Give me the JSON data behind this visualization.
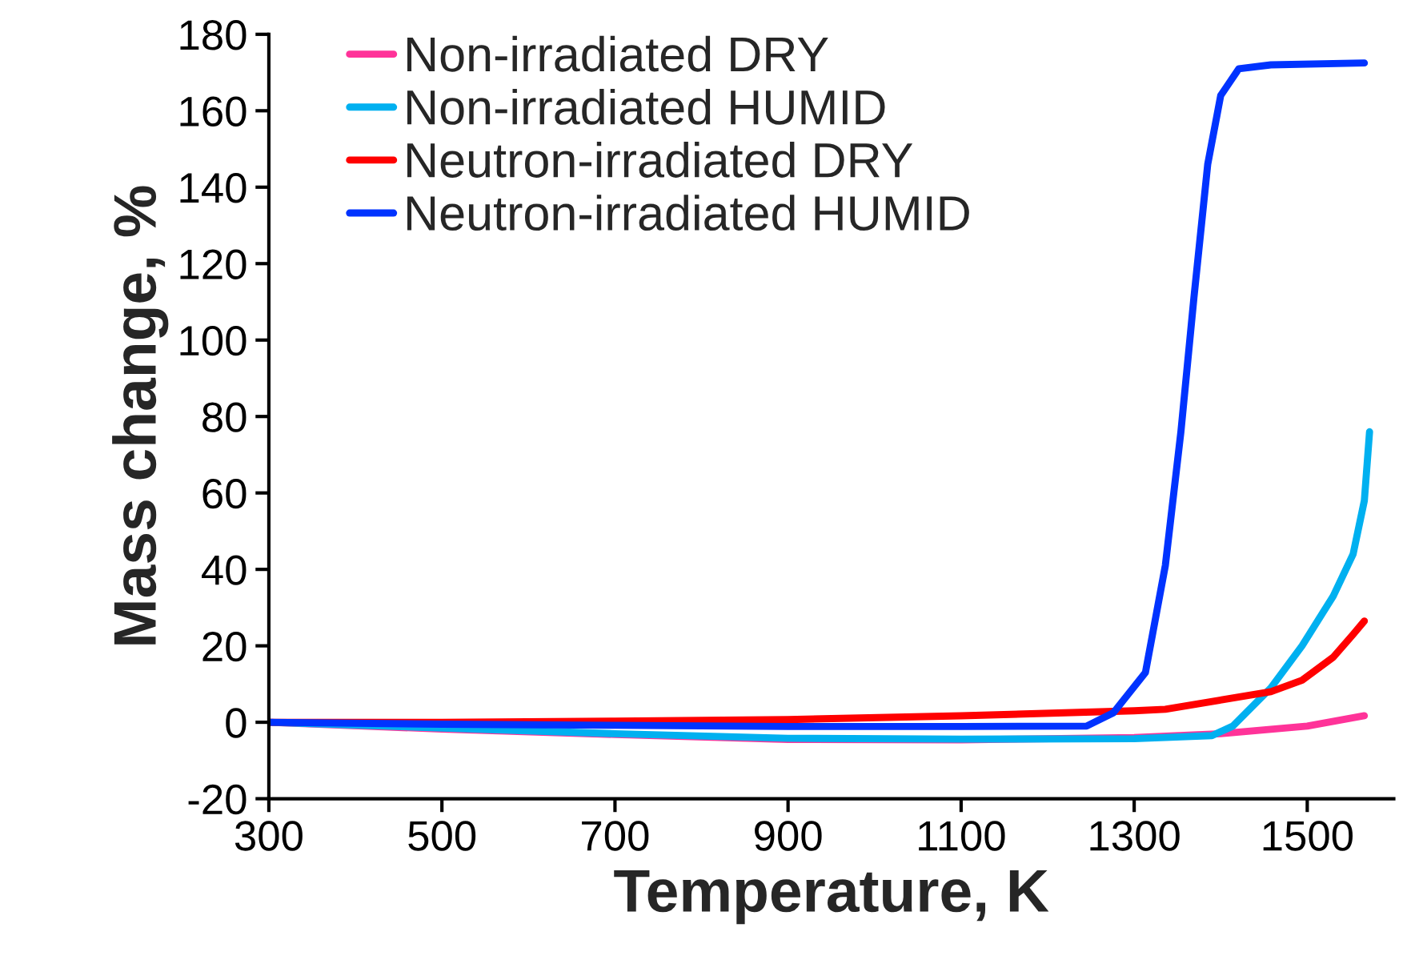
{
  "chart_data": {
    "type": "line",
    "xlabel": "Temperature, K",
    "ylabel": "Mass change, %",
    "xlim": [
      300,
      1600
    ],
    "xticks": [
      300,
      500,
      700,
      900,
      1100,
      1300,
      1500
    ],
    "ylim": [
      -20,
      180
    ],
    "yticks": [
      -20,
      0,
      20,
      40,
      60,
      80,
      100,
      120,
      140,
      160,
      180
    ],
    "grid": false,
    "legend": "top left",
    "marker": "none",
    "line_style": "solid",
    "series": [
      {
        "name": "Non-irradiated DRY",
        "color": "#ff3399",
        "x": [
          300,
          500,
          700,
          900,
          1100,
          1300,
          1400,
          1500,
          1566
        ],
        "values": [
          0,
          -1.8,
          -3.2,
          -4.5,
          -4.6,
          -4,
          -3,
          -1,
          1.7
        ]
      },
      {
        "name": "Non-irradiated HUMID",
        "color": "#00b0f0",
        "x": [
          300,
          500,
          700,
          900,
          1100,
          1300,
          1390,
          1414,
          1458,
          1494,
          1530,
          1553,
          1566,
          1572
        ],
        "values": [
          0,
          -1.5,
          -3,
          -4.2,
          -4.4,
          -4.3,
          -3.5,
          -1,
          9,
          20,
          33,
          44,
          58,
          76
        ]
      },
      {
        "name": "Neutron-irradiated DRY",
        "color": "#ff0000",
        "x": [
          300,
          500,
          700,
          900,
          1100,
          1300,
          1336,
          1458,
          1494,
          1530,
          1553,
          1566
        ],
        "values": [
          0,
          0,
          0.3,
          0.7,
          1.7,
          3,
          3.4,
          8,
          11,
          17,
          23,
          26.5
        ]
      },
      {
        "name": "Neutron-irradiated HUMID",
        "color": "#0033ff",
        "x": [
          300,
          500,
          700,
          900,
          1100,
          1245,
          1276,
          1313,
          1336,
          1354,
          1369,
          1385,
          1400,
          1421,
          1458,
          1566
        ],
        "values": [
          0,
          -0.5,
          -0.8,
          -1.1,
          -1.1,
          -1,
          2.5,
          13,
          41,
          76,
          111,
          146,
          164,
          171,
          172,
          172.5
        ]
      }
    ]
  }
}
